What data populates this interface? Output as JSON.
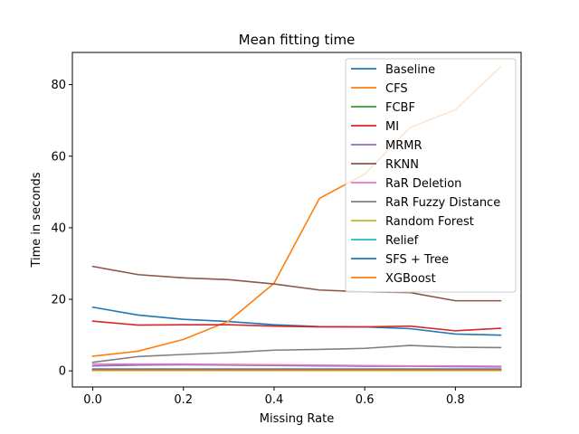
{
  "chart_data": {
    "type": "line",
    "title": "Mean fitting time",
    "xlabel": "Missing Rate",
    "ylabel": "Time in seconds",
    "xlim": [
      -0.045,
      0.945
    ],
    "ylim": [
      -4.5,
      89
    ],
    "xticks": [
      0.0,
      0.2,
      0.4,
      0.6,
      0.8
    ],
    "xtick_labels": [
      "0.0",
      "0.2",
      "0.4",
      "0.6",
      "0.8"
    ],
    "yticks": [
      0,
      20,
      40,
      60,
      80
    ],
    "ytick_labels": [
      "0",
      "20",
      "40",
      "60",
      "80"
    ],
    "grid": false,
    "legend_position": "top-right",
    "x": [
      0.0,
      0.1,
      0.2,
      0.3,
      0.4,
      0.5,
      0.6,
      0.7,
      0.8,
      0.9
    ],
    "series": [
      {
        "name": "Baseline",
        "color": "#1f77b4",
        "values": [
          17.8,
          15.6,
          14.4,
          13.8,
          12.9,
          12.4,
          12.3,
          11.8,
          10.3,
          10.0
        ]
      },
      {
        "name": "CFS",
        "color": "#ff7f0e",
        "values": [
          4.1,
          5.5,
          8.8,
          13.9,
          24.5,
          48.2,
          55.0,
          68.0,
          73.0,
          85.0
        ]
      },
      {
        "name": "FCBF",
        "color": "#2ca02c",
        "values": [
          0.2,
          0.2,
          0.2,
          0.2,
          0.2,
          0.2,
          0.2,
          0.2,
          0.2,
          0.2
        ]
      },
      {
        "name": "MI",
        "color": "#d62728",
        "values": [
          13.9,
          12.8,
          12.9,
          12.9,
          12.5,
          12.3,
          12.3,
          12.5,
          11.2,
          11.9
        ]
      },
      {
        "name": "MRMR",
        "color": "#9467bd",
        "values": [
          1.4,
          1.6,
          1.7,
          1.6,
          1.5,
          1.4,
          1.3,
          1.3,
          1.2,
          1.1
        ]
      },
      {
        "name": "RKNN",
        "color": "#8c564b",
        "values": [
          29.2,
          26.9,
          26.0,
          25.5,
          24.3,
          22.6,
          22.1,
          21.9,
          19.6,
          19.6
        ]
      },
      {
        "name": "RaR Deletion",
        "color": "#e377c2",
        "values": [
          1.9,
          1.9,
          1.9,
          1.8,
          1.7,
          1.6,
          1.5,
          1.4,
          1.4,
          1.3
        ]
      },
      {
        "name": "RaR Fuzzy Distance",
        "color": "#7f7f7f",
        "values": [
          2.4,
          4.0,
          4.6,
          5.1,
          5.8,
          6.0,
          6.3,
          7.1,
          6.6,
          6.5
        ]
      },
      {
        "name": "Random Forest",
        "color": "#bcbd22",
        "values": [
          0.1,
          0.1,
          0.1,
          0.1,
          0.1,
          0.1,
          0.1,
          0.1,
          0.1,
          0.1
        ]
      },
      {
        "name": "Relief",
        "color": "#17becf",
        "values": [
          0.3,
          0.3,
          0.3,
          0.3,
          0.3,
          0.3,
          0.3,
          0.3,
          0.3,
          0.3
        ]
      },
      {
        "name": "SFS + Tree",
        "color": "#1f77b4",
        "values": [
          0.5,
          0.5,
          0.5,
          0.5,
          0.5,
          0.5,
          0.5,
          0.5,
          0.5,
          0.5
        ]
      },
      {
        "name": "XGBoost",
        "color": "#ff7f0e",
        "values": [
          0.2,
          0.2,
          0.2,
          0.2,
          0.2,
          0.2,
          0.2,
          0.2,
          0.2,
          0.2
        ]
      }
    ]
  }
}
